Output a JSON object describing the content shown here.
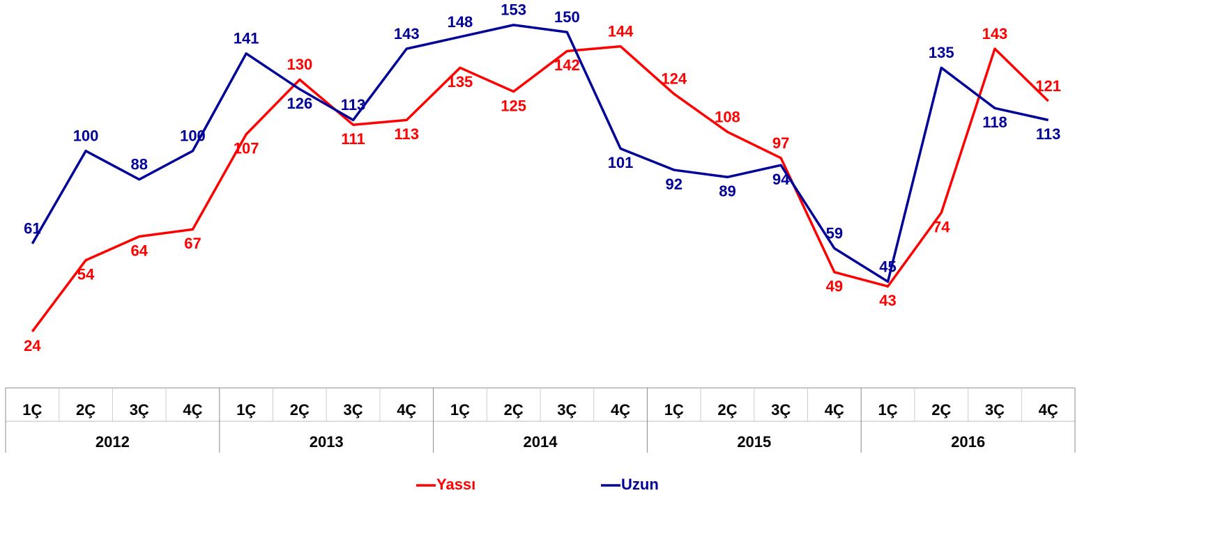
{
  "chart_data": {
    "type": "line",
    "categories": [
      "1Ç",
      "2Ç",
      "3Ç",
      "4Ç",
      "1Ç",
      "2Ç",
      "3Ç",
      "4Ç",
      "1Ç",
      "2Ç",
      "3Ç",
      "4Ç",
      "1Ç",
      "2Ç",
      "3Ç",
      "4Ç",
      "1Ç",
      "2Ç",
      "3Ç",
      "4Ç"
    ],
    "groups": [
      "2012",
      "2013",
      "2014",
      "2015",
      "2016"
    ],
    "series": [
      {
        "name": "Yassı",
        "color": "#ff0000",
        "values": [
          24,
          54,
          64,
          67,
          107,
          130,
          111,
          113,
          135,
          125,
          142,
          144,
          124,
          108,
          97,
          49,
          43,
          74,
          143,
          121
        ]
      },
      {
        "name": "Uzun",
        "color": "#000099",
        "values": [
          61,
          100,
          88,
          100,
          141,
          126,
          113,
          143,
          148,
          153,
          150,
          101,
          92,
          89,
          94,
          59,
          45,
          135,
          118,
          113
        ]
      }
    ],
    "ylim": [
      0,
      160
    ],
    "legend": "bottom"
  }
}
